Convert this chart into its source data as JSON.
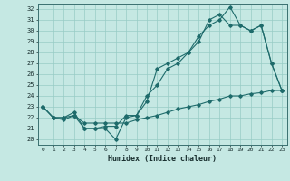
{
  "xlabel": "Humidex (Indice chaleur)",
  "xlim": [
    -0.5,
    23.5
  ],
  "ylim": [
    19.5,
    32.5
  ],
  "yticks": [
    20,
    21,
    22,
    23,
    24,
    25,
    26,
    27,
    28,
    29,
    30,
    31,
    32
  ],
  "xticks": [
    0,
    1,
    2,
    3,
    4,
    5,
    6,
    7,
    8,
    9,
    10,
    11,
    12,
    13,
    14,
    15,
    16,
    17,
    18,
    19,
    20,
    21,
    22,
    23
  ],
  "background_color": "#c5e8e3",
  "grid_color": "#98ccc5",
  "line_color": "#1e6b6b",
  "line1_x": [
    0,
    1,
    2,
    3,
    4,
    5,
    6,
    7,
    8,
    9,
    10,
    11,
    12,
    13,
    14,
    15,
    16,
    17,
    18,
    19,
    20,
    21,
    22,
    23
  ],
  "line1_y": [
    23.0,
    22.0,
    21.8,
    22.2,
    21.0,
    21.0,
    21.0,
    20.0,
    22.0,
    22.2,
    23.5,
    26.5,
    27.0,
    27.5,
    28.0,
    29.5,
    30.5,
    31.0,
    32.2,
    30.5,
    30.0,
    30.5,
    27.0,
    24.5
  ],
  "line2_x": [
    0,
    1,
    2,
    3,
    4,
    5,
    6,
    7,
    8,
    9,
    10,
    11,
    12,
    13,
    14,
    15,
    16,
    17,
    18,
    19,
    20,
    21,
    22,
    23
  ],
  "line2_y": [
    23.0,
    22.0,
    22.0,
    22.5,
    21.0,
    21.0,
    21.2,
    21.2,
    22.2,
    22.2,
    24.0,
    25.0,
    26.5,
    27.0,
    28.0,
    29.0,
    31.0,
    31.5,
    30.5,
    30.5,
    30.0,
    30.5,
    27.0,
    24.5
  ],
  "line3_x": [
    0,
    1,
    2,
    3,
    4,
    5,
    6,
    7,
    8,
    9,
    10,
    11,
    12,
    13,
    14,
    15,
    16,
    17,
    18,
    19,
    20,
    21,
    22,
    23
  ],
  "line3_y": [
    23.0,
    22.0,
    22.0,
    22.2,
    21.5,
    21.5,
    21.5,
    21.5,
    21.5,
    21.8,
    22.0,
    22.2,
    22.5,
    22.8,
    23.0,
    23.2,
    23.5,
    23.7,
    24.0,
    24.0,
    24.2,
    24.3,
    24.5,
    24.5
  ]
}
